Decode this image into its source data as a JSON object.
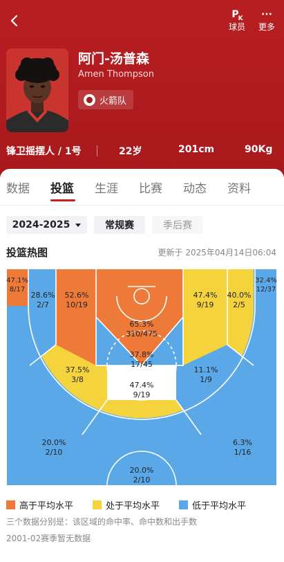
{
  "header": {
    "player_pk_label": "P",
    "player_pk_sub": "K",
    "player_label": "球员",
    "more_glyph": "···",
    "more_label": "更多"
  },
  "player": {
    "name_cn": "阿门-汤普森",
    "name_en": "Amen Thompson",
    "team": "火箭队",
    "position": "锋卫摇摆人 / 1号",
    "age": "22岁",
    "height": "201cm",
    "weight": "90Kg"
  },
  "colors": {
    "brand_red": "#b81e21",
    "above_avg": "#ee7a3a",
    "avg": "#f5d33d",
    "below_avg": "#5aa8e8"
  },
  "tabs": [
    {
      "label": "数据",
      "active": false
    },
    {
      "label": "投篮",
      "active": true
    },
    {
      "label": "生涯",
      "active": false
    },
    {
      "label": "比赛",
      "active": false
    },
    {
      "label": "动态",
      "active": false
    },
    {
      "label": "资料",
      "active": false
    }
  ],
  "filters": {
    "season": "2024-2025",
    "regular": "常规赛",
    "playoff": "季后赛"
  },
  "heatmap": {
    "title": "投篮热图",
    "updated": "更新于 2025年04月14日06:04",
    "zones": [
      {
        "id": "left-corner-3",
        "pct": "47.1%",
        "made_att": "8/17",
        "level": "above"
      },
      {
        "id": "left-wing-mid",
        "pct": "28.6%",
        "made_att": "2/7",
        "level": "below"
      },
      {
        "id": "left-mid",
        "pct": "52.6%",
        "made_att": "10/19",
        "level": "above"
      },
      {
        "id": "restricted",
        "pct": "65.3%",
        "made_att": "310/475",
        "level": "above"
      },
      {
        "id": "right-mid",
        "pct": "47.4%",
        "made_att": "9/19",
        "level": "avg"
      },
      {
        "id": "right-wing-mid",
        "pct": "40.0%",
        "made_att": "2/5",
        "level": "avg"
      },
      {
        "id": "right-corner-3",
        "pct": "32.4%",
        "made_att": "12/37",
        "level": "below"
      },
      {
        "id": "paint",
        "pct": "37.8%",
        "made_att": "17/45",
        "level": "below"
      },
      {
        "id": "left-elbow",
        "pct": "37.5%",
        "made_att": "3/8",
        "level": "avg"
      },
      {
        "id": "right-elbow",
        "pct": "11.1%",
        "made_att": "1/9",
        "level": "below"
      },
      {
        "id": "top-key",
        "pct": "47.4%",
        "made_att": "9/19",
        "level": "avg"
      },
      {
        "id": "left-wing-3",
        "pct": "20.0%",
        "made_att": "2/10",
        "level": "below"
      },
      {
        "id": "right-wing-3",
        "pct": "6.3%",
        "made_att": "1/16",
        "level": "below"
      },
      {
        "id": "top-3",
        "pct": "20.0%",
        "made_att": "2/10",
        "level": "below"
      }
    ]
  },
  "legend": {
    "above": "高于平均水平",
    "avg": "处于平均水平",
    "below": "低于平均水平"
  },
  "note": "三个数据分别是：该区域的命中率、命中数和出手数",
  "no_data": "2001-02赛季暂无数据"
}
